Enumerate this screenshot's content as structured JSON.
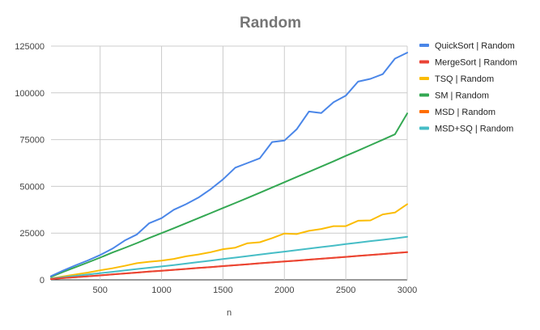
{
  "chart_data": {
    "type": "line",
    "title": "Random",
    "xlabel": "n",
    "ylabel": "",
    "xlim": [
      100,
      3000
    ],
    "ylim": [
      0,
      125000
    ],
    "x_ticks": [
      500,
      1000,
      1500,
      2000,
      2500,
      3000
    ],
    "y_ticks": [
      0,
      25000,
      50000,
      75000,
      100000,
      125000
    ],
    "x_tick_labels": [
      "500",
      "1000",
      "1500",
      "2000",
      "2500",
      "3000"
    ],
    "y_tick_labels": [
      "0",
      "25000",
      "50000",
      "75000",
      "100000",
      "125000"
    ],
    "grid": true,
    "legend_position": "right",
    "x": [
      100,
      200,
      300,
      400,
      500,
      600,
      700,
      800,
      900,
      1000,
      1100,
      1200,
      1300,
      1400,
      1500,
      1600,
      1700,
      1800,
      1900,
      2000,
      2100,
      2200,
      2300,
      2400,
      2500,
      2600,
      2700,
      2800,
      2900,
      3000
    ],
    "series": [
      {
        "name": "QuickSort | Random",
        "color": "#4a86e8",
        "values": [
          2000,
          5000,
          7800,
          10400,
          13300,
          16700,
          21000,
          24300,
          30300,
          33000,
          37500,
          40500,
          44000,
          48500,
          53700,
          60000,
          62500,
          65000,
          73700,
          74500,
          80500,
          90000,
          89200,
          95000,
          98500,
          106000,
          107500,
          110000,
          118300,
          121500
        ]
      },
      {
        "name": "MergeSort | Random",
        "color": "#ea4335",
        "values": [
          450,
          950,
          1400,
          1900,
          2400,
          2900,
          3400,
          3900,
          4400,
          4900,
          5350,
          5850,
          6350,
          6850,
          7350,
          7850,
          8350,
          8850,
          9350,
          9850,
          10300,
          10800,
          11300,
          11800,
          12300,
          12800,
          13300,
          13800,
          14300,
          14800
        ]
      },
      {
        "name": "TSQ | Random",
        "color": "#fbbc04",
        "values": [
          800,
          1800,
          2900,
          3900,
          5100,
          6200,
          7500,
          8900,
          9700,
          10300,
          11200,
          12600,
          13600,
          14800,
          16400,
          17200,
          19600,
          20100,
          22300,
          24800,
          24500,
          26200,
          27200,
          28700,
          28700,
          31600,
          31800,
          35000,
          36000,
          40500
        ]
      },
      {
        "name": "SM | Random",
        "color": "#34a853",
        "values": [
          1600,
          4300,
          6800,
          9300,
          11900,
          14600,
          17100,
          19700,
          22400,
          25000,
          27600,
          30300,
          33000,
          35700,
          38400,
          41100,
          43800,
          46600,
          49400,
          52200,
          55000,
          57800,
          60600,
          63400,
          66300,
          69100,
          72000,
          74900,
          77800,
          89000
        ]
      },
      {
        "name": "MSD | Random",
        "color": "#ff6d01",
        "values": [
          450,
          950,
          1400,
          1900,
          2400,
          2900,
          3400,
          3900,
          4400,
          4900,
          5350,
          5850,
          6350,
          6850,
          7350,
          7850,
          8350,
          8850,
          9350,
          9850,
          10300,
          10800,
          11300,
          11800,
          12300,
          12800,
          13300,
          13800,
          14300,
          14800
        ]
      },
      {
        "name": "MSD+SQ | Random",
        "color": "#46bdc6",
        "values": [
          700,
          1400,
          2100,
          2850,
          3600,
          4300,
          5000,
          5800,
          6500,
          7200,
          7900,
          8700,
          9500,
          10300,
          11100,
          11900,
          12700,
          13500,
          14300,
          15100,
          15900,
          16700,
          17500,
          18300,
          19100,
          19900,
          20700,
          21400,
          22200,
          23000
        ]
      }
    ]
  }
}
